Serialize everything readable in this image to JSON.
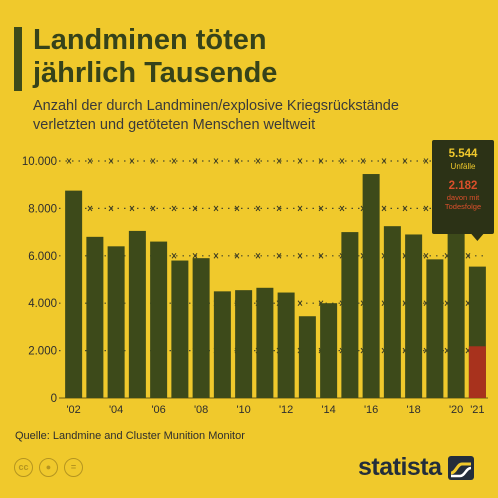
{
  "header": {
    "title_line1": "Landminen töten",
    "title_line2": "jährlich Tausende",
    "subtitle_line1": "Anzahl der durch Landminen/explosive Kriegsrückstände",
    "subtitle_line2": "verletzten und getöteten Menschen weltweit"
  },
  "footer": {
    "source": "Quelle: Landmine and Cluster Munition Monitor",
    "logo": "statista",
    "license_icons": [
      "cc",
      "person",
      "="
    ]
  },
  "colors": {
    "background": "#f0c92c",
    "bar": "#3d4a1a",
    "deaths_bar": "#a8321d",
    "callout_bg": "#2c3216",
    "callout_deaths": "#d94f2b"
  },
  "chart_data": {
    "type": "bar",
    "categories": [
      "2002",
      "2003",
      "2004",
      "2005",
      "2006",
      "2007",
      "2008",
      "2009",
      "2010",
      "2011",
      "2012",
      "2013",
      "2014",
      "2015",
      "2016",
      "2017",
      "2018",
      "2019",
      "2020",
      "2021"
    ],
    "x_tick_labels": [
      "'02",
      "",
      "'04",
      "",
      "'06",
      "",
      "'08",
      "",
      "'10",
      "",
      "'12",
      "",
      "'14",
      "",
      "'16",
      "",
      "'18",
      "",
      "'20",
      "'21"
    ],
    "series": [
      {
        "name": "Unfälle",
        "values": [
          8750,
          6800,
          6400,
          7050,
          6600,
          5800,
          5900,
          4500,
          4550,
          4650,
          4450,
          3450,
          4000,
          7000,
          9450,
          7250,
          6900,
          5850,
          7050,
          5544
        ]
      },
      {
        "name": "davon mit Todesfolge",
        "values": [
          null,
          null,
          null,
          null,
          null,
          null,
          null,
          null,
          null,
          null,
          null,
          null,
          null,
          null,
          null,
          null,
          null,
          null,
          null,
          2182
        ]
      }
    ],
    "y_ticks": [
      0,
      2000,
      4000,
      6000,
      8000,
      10000
    ],
    "y_tick_labels": [
      "0",
      "2.000",
      "4.000",
      "6.000",
      "8.000",
      "10.000"
    ],
    "ylim": [
      0,
      10000
    ],
    "grid": true,
    "callout": {
      "value": "5.544",
      "value_label": "Unfälle",
      "deaths": "2.182",
      "deaths_label_line1": "davon mit",
      "deaths_label_line2": "Todesfolge"
    }
  }
}
